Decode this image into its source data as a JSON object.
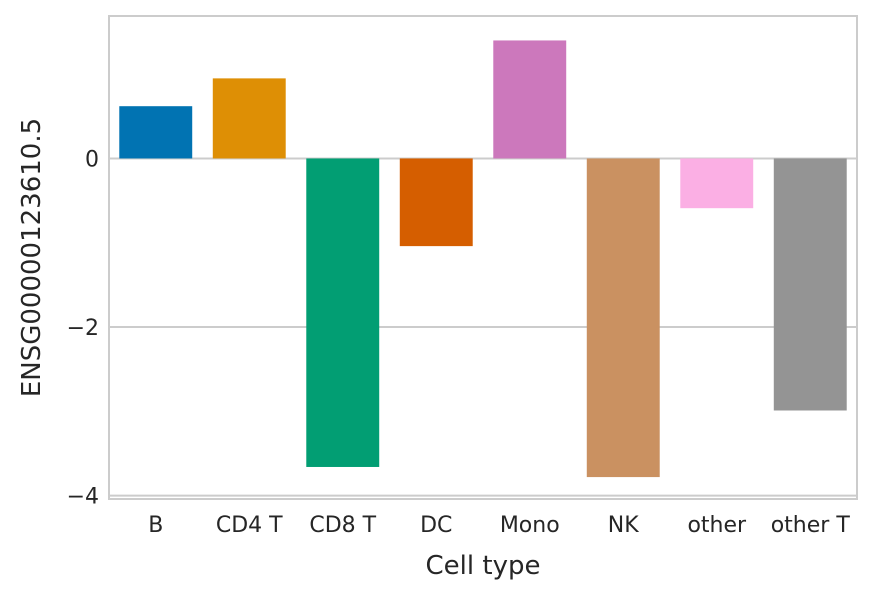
{
  "chart_data": {
    "type": "bar",
    "title": "",
    "xlabel": "Cell type",
    "ylabel": "ENSG00000123610.5",
    "categories": [
      "B",
      "CD4 T",
      "CD8 T",
      "DC",
      "Mono",
      "NK",
      "other",
      "other T"
    ],
    "values": [
      0.62,
      0.95,
      -3.66,
      -1.04,
      1.4,
      -3.78,
      -0.59,
      -2.99
    ],
    "colors": [
      "#0173b2",
      "#de8f05",
      "#029e73",
      "#d55e00",
      "#cc78bc",
      "#ca9161",
      "#fbafe4",
      "#949494"
    ],
    "ylim": [
      -4.04,
      1.69
    ],
    "yticks": [
      {
        "value": -4,
        "label": "−4"
      },
      {
        "value": -2,
        "label": "−2"
      },
      {
        "value": 0,
        "label": "0"
      }
    ],
    "grid": true,
    "style": "whitegrid"
  }
}
